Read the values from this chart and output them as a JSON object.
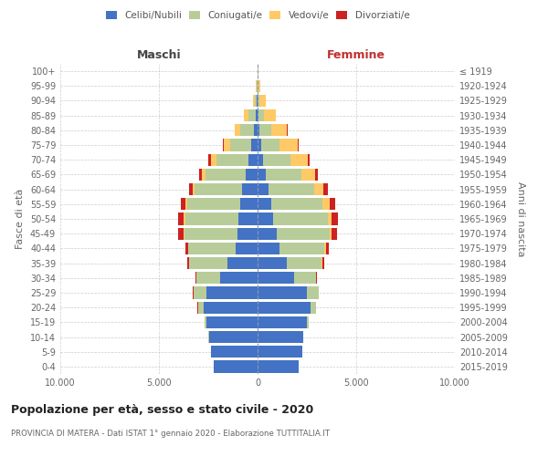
{
  "age_groups": [
    "0-4",
    "5-9",
    "10-14",
    "15-19",
    "20-24",
    "25-29",
    "30-34",
    "35-39",
    "40-44",
    "45-49",
    "50-54",
    "55-59",
    "60-64",
    "65-69",
    "70-74",
    "75-79",
    "80-84",
    "85-89",
    "90-94",
    "95-99",
    "100+"
  ],
  "birth_years": [
    "2015-2019",
    "2010-2014",
    "2005-2009",
    "2000-2004",
    "1995-1999",
    "1990-1994",
    "1985-1989",
    "1980-1984",
    "1975-1979",
    "1970-1974",
    "1965-1969",
    "1960-1964",
    "1955-1959",
    "1950-1954",
    "1945-1949",
    "1940-1944",
    "1935-1939",
    "1930-1934",
    "1925-1929",
    "1920-1924",
    "≤ 1919"
  ],
  "maschi": {
    "celibi": [
      2200,
      2350,
      2450,
      2600,
      2750,
      2600,
      1900,
      1550,
      1100,
      1020,
      960,
      900,
      780,
      620,
      480,
      310,
      180,
      80,
      30,
      20,
      10
    ],
    "coniugati": [
      5,
      10,
      30,
      100,
      280,
      650,
      1200,
      1900,
      2400,
      2700,
      2700,
      2650,
      2400,
      2000,
      1600,
      1100,
      700,
      400,
      120,
      30,
      5
    ],
    "vedovi": [
      0,
      0,
      0,
      0,
      2,
      5,
      10,
      20,
      30,
      50,
      70,
      100,
      130,
      200,
      280,
      300,
      280,
      200,
      80,
      20,
      5
    ],
    "divorziati": [
      0,
      0,
      0,
      0,
      5,
      20,
      60,
      100,
      150,
      250,
      280,
      250,
      180,
      150,
      120,
      50,
      15,
      10,
      5,
      0,
      0
    ]
  },
  "femmine": {
    "nubili": [
      2100,
      2250,
      2300,
      2500,
      2700,
      2500,
      1850,
      1500,
      1100,
      950,
      800,
      700,
      550,
      400,
      280,
      180,
      100,
      50,
      20,
      10,
      5
    ],
    "coniugate": [
      3,
      8,
      20,
      80,
      260,
      600,
      1100,
      1750,
      2300,
      2700,
      2750,
      2600,
      2300,
      1800,
      1400,
      950,
      600,
      280,
      80,
      20,
      5
    ],
    "vedove": [
      0,
      0,
      0,
      0,
      2,
      5,
      15,
      30,
      60,
      120,
      200,
      350,
      500,
      700,
      850,
      900,
      800,
      600,
      300,
      100,
      20
    ],
    "divorziate": [
      0,
      0,
      0,
      0,
      5,
      15,
      55,
      100,
      150,
      270,
      310,
      280,
      200,
      160,
      130,
      60,
      25,
      15,
      5,
      0,
      0
    ]
  },
  "colors": {
    "celibi_nubili": "#4472c4",
    "coniugati": "#b8cc99",
    "vedovi": "#ffc966",
    "divorziati": "#cc2222"
  },
  "title": "Popolazione per età, sesso e stato civile - 2020",
  "subtitle": "PROVINCIA DI MATERA - Dati ISTAT 1° gennaio 2020 - Elaborazione TUTTITALIA.IT",
  "xlabel_maschi": "Maschi",
  "xlabel_femmine": "Femmine",
  "ylabel_left": "Fasce di età",
  "ylabel_right": "Anni di nascita",
  "xlim": 10000,
  "background_color": "#ffffff",
  "grid_color": "#cccccc",
  "legend_labels": [
    "Celibi/Nubili",
    "Coniugati/e",
    "Vedovi/e",
    "Divorziati/e"
  ]
}
